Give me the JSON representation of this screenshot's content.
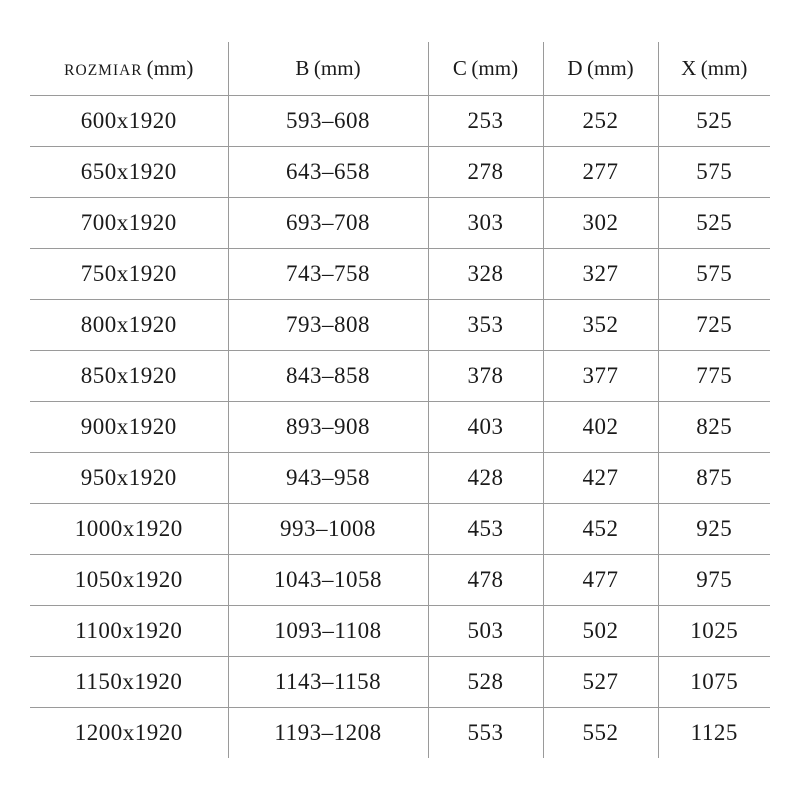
{
  "colors": {
    "grid": "#9a9a9a",
    "text": "#1a1a1a",
    "background": "#ffffff"
  },
  "chart_data": {
    "type": "table",
    "columns": [
      {
        "label": "ROZMIAR",
        "unit": "(mm)",
        "small_caps": true
      },
      {
        "label": "B",
        "unit": "(mm)",
        "small_caps": false
      },
      {
        "label": "C",
        "unit": "(mm)",
        "small_caps": false
      },
      {
        "label": "D",
        "unit": "(mm)",
        "small_caps": false
      },
      {
        "label": "X",
        "unit": "(mm)",
        "small_caps": false
      }
    ],
    "rows": [
      [
        "600x1920",
        "593–608",
        "253",
        "252",
        "525"
      ],
      [
        "650x1920",
        "643–658",
        "278",
        "277",
        "575"
      ],
      [
        "700x1920",
        "693–708",
        "303",
        "302",
        "525"
      ],
      [
        "750x1920",
        "743–758",
        "328",
        "327",
        "575"
      ],
      [
        "800x1920",
        "793–808",
        "353",
        "352",
        "725"
      ],
      [
        "850x1920",
        "843–858",
        "378",
        "377",
        "775"
      ],
      [
        "900x1920",
        "893–908",
        "403",
        "402",
        "825"
      ],
      [
        "950x1920",
        "943–958",
        "428",
        "427",
        "875"
      ],
      [
        "1000x1920",
        "993–1008",
        "453",
        "452",
        "925"
      ],
      [
        "1050x1920",
        "1043–1058",
        "478",
        "477",
        "975"
      ],
      [
        "1100x1920",
        "1093–1108",
        "503",
        "502",
        "1025"
      ],
      [
        "1150x1920",
        "1143–1158",
        "528",
        "527",
        "1075"
      ],
      [
        "1200x1920",
        "1193–1208",
        "553",
        "552",
        "1125"
      ]
    ]
  }
}
